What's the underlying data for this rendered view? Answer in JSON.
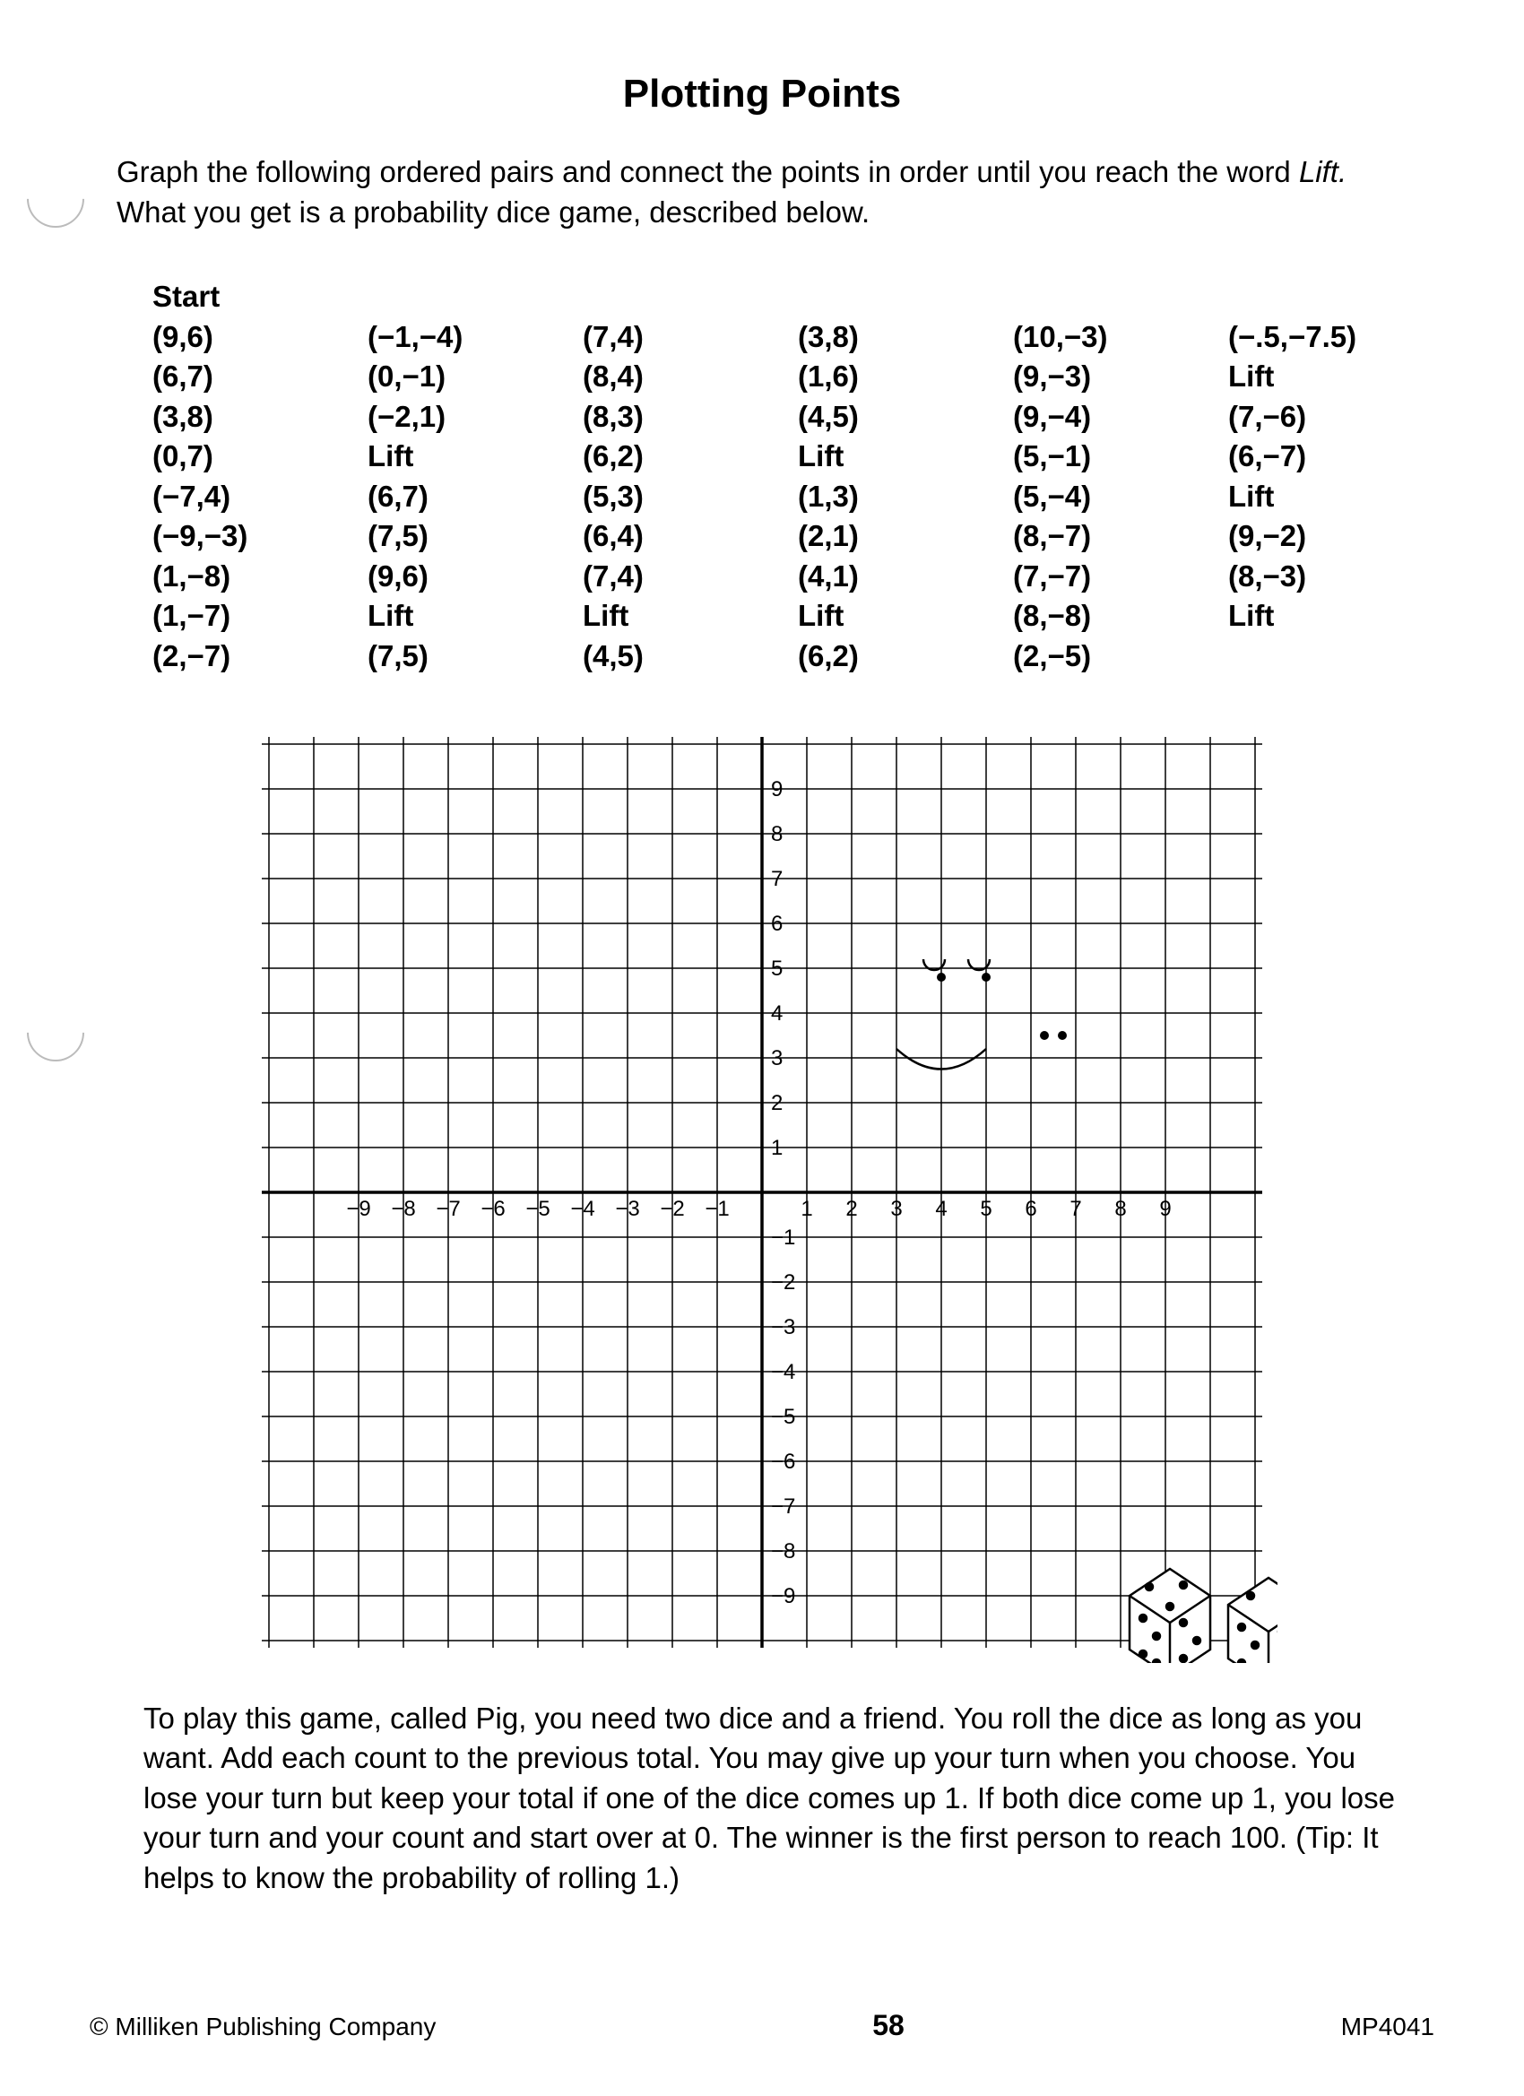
{
  "title": "Plotting Points",
  "instructions_pre": "Graph the following ordered pairs and connect the points in order until you reach the word ",
  "instructions_ital": "Lift.",
  "instructions_post": " What you get is a probability dice game, described below.",
  "start_label": "Start",
  "columns": [
    [
      "(9,6)",
      "(6,7)",
      "(3,8)",
      "(0,7)",
      "(−7,4)",
      "(−9,−3)",
      "(1,−8)",
      "(1,−7)",
      "(2,−7)"
    ],
    [
      "(−1,−4)",
      "(0,−1)",
      "(−2,1)",
      "Lift",
      "(6,7)",
      "(7,5)",
      "(9,6)",
      "Lift",
      "(7,5)"
    ],
    [
      "(7,4)",
      "(8,4)",
      "(8,3)",
      "(6,2)",
      "(5,3)",
      "(6,4)",
      "(7,4)",
      "Lift",
      "(4,5)"
    ],
    [
      "(3,8)",
      "(1,6)",
      "(4,5)",
      "Lift",
      "(1,3)",
      "(2,1)",
      "(4,1)",
      "Lift",
      "(6,2)"
    ],
    [
      "(10,−3)",
      "(9,−3)",
      "(9,−4)",
      "(5,−1)",
      "(5,−4)",
      "(8,−7)",
      "(7,−7)",
      "(8,−8)",
      "(2,−5)"
    ],
    [
      "(−.5,−7.5)",
      "Lift",
      "(7,−6)",
      "(6,−7)",
      "Lift",
      "(9,−2)",
      "(8,−3)",
      "Lift",
      ""
    ]
  ],
  "game_text": "To play this game, called Pig, you need two dice and a friend. You roll the dice as long as you want. Add each count to the previous total. You may give up your turn when you choose. You lose your turn but keep your total if one of the dice comes up 1. If both dice come up 1, you lose your turn and your count and start over at 0. The winner is the first person to reach 100. (Tip: It helps to know the probability of rolling 1.)",
  "footer_left": "© Milliken Publishing Company",
  "footer_center": "58",
  "footer_right": "MP4041",
  "grid": {
    "xmin": -11,
    "xmax": 11,
    "ymin": -10,
    "ymax": 10,
    "label_min": -9,
    "label_max": 9,
    "cell": 50,
    "axis_color": "#000000",
    "grid_color": "#000000",
    "background": "#ffffff"
  }
}
